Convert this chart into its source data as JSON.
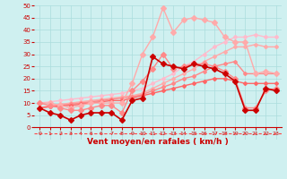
{
  "x": [
    0,
    1,
    2,
    3,
    4,
    5,
    6,
    7,
    8,
    9,
    10,
    11,
    12,
    13,
    14,
    15,
    16,
    17,
    18,
    19,
    20,
    21,
    22,
    23
  ],
  "lines": [
    {
      "y": [
        10,
        10.5,
        11,
        11.5,
        12,
        12.5,
        13,
        13.5,
        14,
        15,
        16,
        18,
        20,
        22,
        25,
        27,
        30,
        33,
        35,
        37,
        37,
        38,
        37,
        37
      ],
      "color": "#ffbbcc",
      "marker": "D",
      "markersize": 2,
      "linewidth": 1.0,
      "zorder": 1
    },
    {
      "y": [
        8,
        9,
        9.5,
        10,
        10.5,
        11,
        11.5,
        12,
        12.5,
        13,
        14,
        16,
        18,
        20,
        22,
        24,
        27,
        29,
        31,
        33,
        33,
        34,
        33,
        33
      ],
      "color": "#ffaaaa",
      "marker": "D",
      "markersize": 2,
      "linewidth": 1.0,
      "zorder": 2
    },
    {
      "y": [
        8,
        8.5,
        9,
        9.5,
        10,
        10.5,
        11,
        11.5,
        12,
        12.5,
        13.5,
        15,
        16.5,
        18,
        20,
        21,
        23,
        25,
        26,
        27,
        22,
        22,
        22,
        22
      ],
      "color": "#ff8888",
      "marker": "D",
      "markersize": 2,
      "linewidth": 1.0,
      "zorder": 3
    },
    {
      "y": [
        8,
        8.5,
        9,
        9,
        9.5,
        10,
        10.5,
        11,
        11,
        12,
        13,
        14,
        15,
        16,
        17,
        18,
        19,
        20,
        20,
        19,
        18,
        18,
        18,
        18
      ],
      "color": "#ff6666",
      "marker": "D",
      "markersize": 2,
      "linewidth": 1.0,
      "zorder": 3
    },
    {
      "y": [
        10,
        10,
        9,
        8,
        9,
        10,
        10,
        10,
        10,
        18,
        30,
        37,
        49,
        39,
        44,
        45,
        44,
        43,
        37,
        35,
        35,
        22,
        23,
        22
      ],
      "color": "#ffaaaa",
      "marker": "D",
      "markersize": 3,
      "linewidth": 1.0,
      "zorder": 4
    },
    {
      "y": [
        10,
        9,
        8,
        7,
        7,
        8,
        9,
        9,
        6,
        15,
        19,
        24,
        30,
        24,
        25,
        26,
        26,
        25,
        23,
        20,
        8,
        8,
        15,
        16
      ],
      "color": "#ff8888",
      "marker": "D",
      "markersize": 3,
      "linewidth": 1.0,
      "zorder": 4
    },
    {
      "y": [
        8,
        6,
        5,
        3,
        5,
        6,
        6,
        6,
        3,
        11,
        12,
        29,
        26,
        25,
        24,
        26,
        25,
        24,
        22,
        19,
        7,
        7,
        16,
        15
      ],
      "color": "#cc0000",
      "marker": "D",
      "markersize": 3,
      "linewidth": 1.2,
      "zorder": 5
    }
  ],
  "dashed_line_y": -2.5,
  "xlabel": "Vent moyen/en rafales ( km/h )",
  "xlim": [
    -0.5,
    23.5
  ],
  "ylim": [
    -5,
    50
  ],
  "yticks": [
    0,
    5,
    10,
    15,
    20,
    25,
    30,
    35,
    40,
    45,
    50
  ],
  "xticks": [
    0,
    1,
    2,
    3,
    4,
    5,
    6,
    7,
    8,
    9,
    10,
    11,
    12,
    13,
    14,
    15,
    16,
    17,
    18,
    19,
    20,
    21,
    22,
    23
  ],
  "bg_color": "#cff0f0",
  "grid_color": "#aadddd",
  "xlabel_color": "#cc0000",
  "tick_color": "#cc0000",
  "dashed_color": "#ff4444"
}
